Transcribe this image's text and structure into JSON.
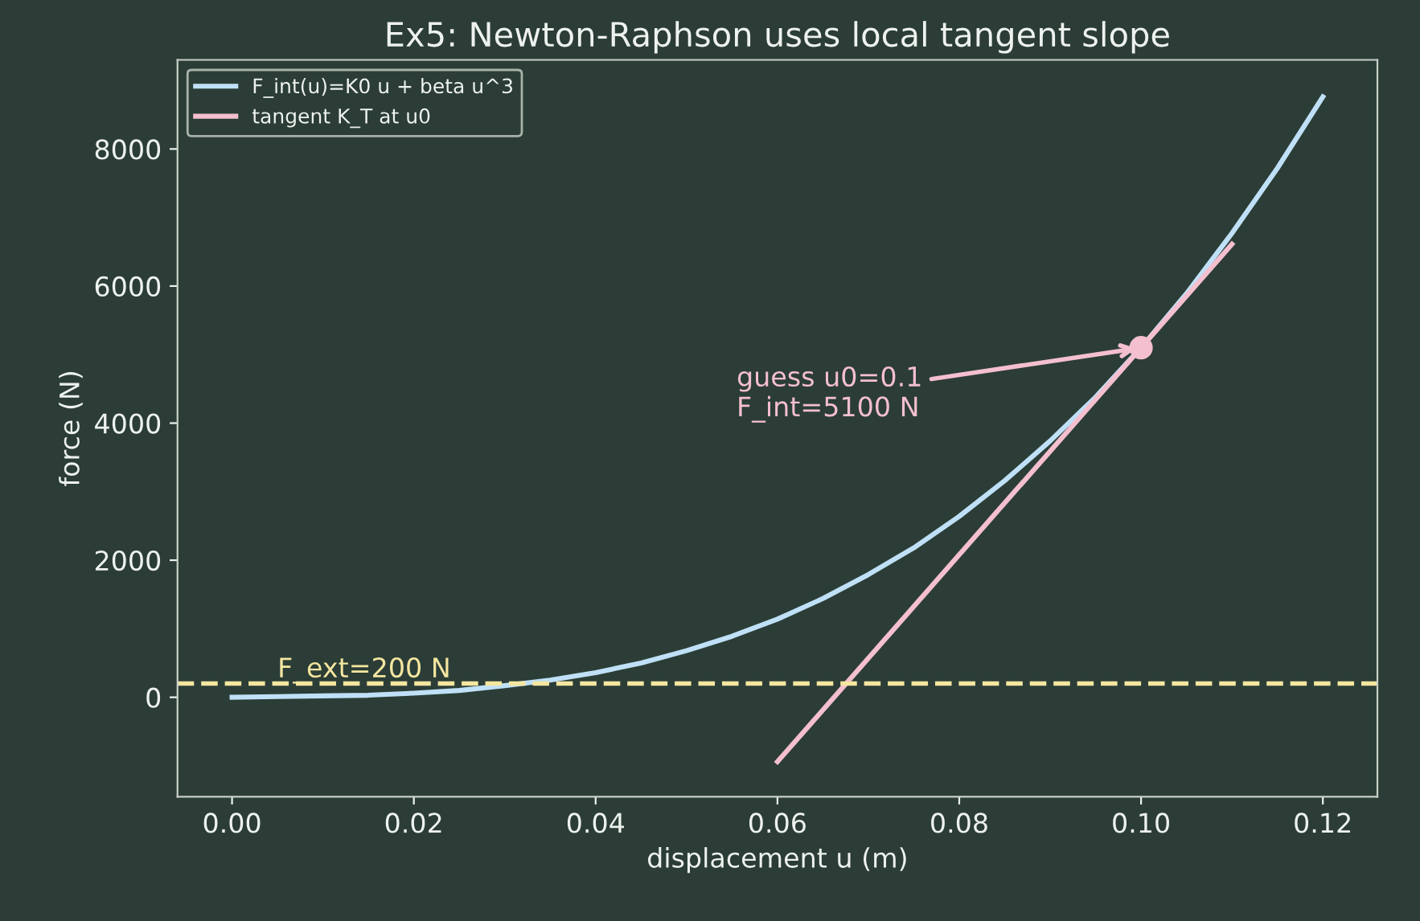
{
  "chart_data": {
    "type": "line",
    "title": "Ex5: Newton-Raphson uses local tangent slope",
    "xlabel": "displacement u (m)",
    "ylabel": "force (N)",
    "series": [
      {
        "name": "F_int(u)=K0 u + beta u^3",
        "color": "#bfe0f7",
        "x": [
          0,
          0.005,
          0.01,
          0.015,
          0.02,
          0.025,
          0.03,
          0.035,
          0.04,
          0.045,
          0.05,
          0.055,
          0.06,
          0.065,
          0.07,
          0.075,
          0.08,
          0.085,
          0.09,
          0.095,
          0.1,
          0.105,
          0.11,
          0.115,
          0.12
        ],
        "values": [
          0,
          10,
          20,
          30,
          60,
          100,
          170,
          250,
          360,
          500,
          680,
          890,
          1140,
          1440,
          1790,
          2180,
          2640,
          3160,
          3740,
          4380,
          5100,
          5890,
          6770,
          7720,
          8760
        ]
      },
      {
        "name": "tangent K_T at u0",
        "color": "#f4bfcf",
        "x": [
          0.06,
          0.11
        ],
        "values": [
          -940,
          6610
        ]
      },
      {
        "type": "scatter",
        "color": "#f4bfcf",
        "x": [
          0.1
        ],
        "values": [
          5100
        ],
        "marker": "circle"
      }
    ],
    "ref_lines": [
      {
        "axis": "y",
        "value": 200,
        "label": "F_ext=200 N",
        "color": "#f5e6a0",
        "line_style": "dashed"
      }
    ],
    "annotations": [
      {
        "text": "guess u0=0.1\nF_int=5100 N",
        "x": 0.1,
        "y": 5100
      }
    ],
    "xlim": [
      -0.006,
      0.126
    ],
    "xticks": [
      {
        "value": 0,
        "label": "0.00"
      },
      {
        "value": 0.02,
        "label": "0.02"
      },
      {
        "value": 0.04,
        "label": "0.04"
      },
      {
        "value": 0.06,
        "label": "0.06"
      },
      {
        "value": 0.08,
        "label": "0.08"
      },
      {
        "value": 0.1,
        "label": "0.10"
      },
      {
        "value": 0.12,
        "label": "0.12"
      }
    ],
    "ylim": [
      -1450,
      9300
    ],
    "yticks": [
      0,
      2000,
      4000,
      6000,
      8000
    ],
    "legend": "top left",
    "grid": false,
    "line_style": "solid"
  }
}
